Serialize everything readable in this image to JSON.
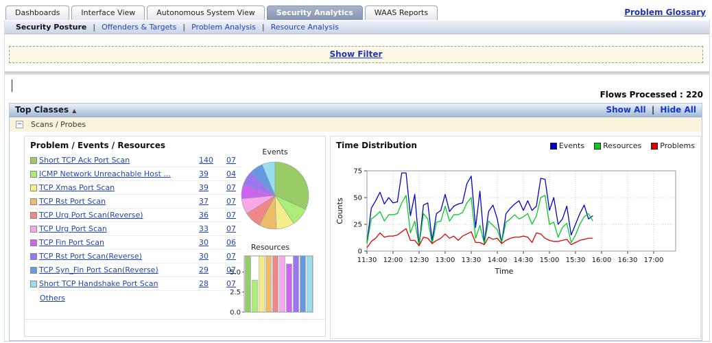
{
  "header": {
    "tabs": [
      {
        "label": "Dashboards"
      },
      {
        "label": "Interface View"
      },
      {
        "label": "Autonomous System View"
      },
      {
        "label": "Security Analytics"
      },
      {
        "label": "WAAS Reports"
      }
    ],
    "active_tab": "Security Analytics",
    "glossary_link": "Problem Glossary"
  },
  "subnav": {
    "items": [
      {
        "label": "Security Posture"
      },
      {
        "label": "Offenders & Targets"
      },
      {
        "label": "Problem Analysis"
      },
      {
        "label": "Resource Analysis"
      }
    ],
    "active": "Security Posture",
    "separator": "|"
  },
  "filter_bar": {
    "label": "Show Filter"
  },
  "status_bar": {
    "flows_processed": "Flows Processed : 220"
  },
  "top_classes": {
    "title": "Top Classes",
    "sort_indicator": "▲",
    "show_all": "Show All",
    "hide_all": "Hide All",
    "separator": "|",
    "class_name": "Scans / Probes",
    "collapse_glyph": "−"
  },
  "problems_panel": {
    "title": "Problem / Events / Resources",
    "others": "Others",
    "rows": [
      {
        "label": "Short TCP Ack Port Scan",
        "events": "140",
        "resources": "07",
        "color": "#99CC66"
      },
      {
        "label": "ICMP Network Unreachable Host ...",
        "events": "39",
        "resources": "04",
        "color": "#AAEE77"
      },
      {
        "label": "TCP Xmas Port Scan",
        "events": "39",
        "resources": "07",
        "color": "#F5EE88"
      },
      {
        "label": "TCP Rst Port Scan",
        "events": "37",
        "resources": "07",
        "color": "#EEBB66"
      },
      {
        "label": "TCP Urg Port Scan(Reverse)",
        "events": "36",
        "resources": "07",
        "color": "#F08888"
      },
      {
        "label": "TCP Urg Port Scan",
        "events": "33",
        "resources": "07",
        "color": "#F8A8E8"
      },
      {
        "label": "TCP Fin Port Scan",
        "events": "30",
        "resources": "06",
        "color": "#CC66EE"
      },
      {
        "label": "TCP Rst Port Scan(Reverse)",
        "events": "30",
        "resources": "07",
        "color": "#9977EE"
      },
      {
        "label": "TCP Syn_Fin Port Scan(Reverse)",
        "events": "29",
        "resources": "07",
        "color": "#6699DD"
      },
      {
        "label": "Short TCP Handshake Port Scan",
        "events": "28",
        "resources": "07",
        "color": "#99DDEE"
      }
    ]
  },
  "time_panel": {
    "title": "Time Distribution",
    "legend": [
      {
        "name": "Events",
        "color": "#0000CC"
      },
      {
        "name": "Resources",
        "color": "#00CC22"
      },
      {
        "name": "Problems",
        "color": "#DD0000"
      }
    ]
  },
  "chart_data": [
    {
      "type": "pie",
      "title": "Events",
      "labels": [
        "Short TCP Ack Port Scan",
        "ICMP Network Unreachable Host ...",
        "TCP Xmas Port Scan",
        "TCP Rst Port Scan",
        "TCP Urg Port Scan(Reverse)",
        "TCP Urg Port Scan",
        "TCP Fin Port Scan",
        "TCP Rst Port Scan(Reverse)",
        "TCP Syn_Fin Port Scan(Reverse)",
        "Short TCP Handshake Port Scan"
      ],
      "values": [
        140,
        39,
        39,
        37,
        36,
        33,
        30,
        30,
        29,
        28
      ],
      "colors": [
        "#99CC66",
        "#AAEE77",
        "#F5EE88",
        "#EEBB66",
        "#F08888",
        "#F8A8E8",
        "#CC66EE",
        "#9977EE",
        "#6699DD",
        "#99DDEE"
      ]
    },
    {
      "type": "bar",
      "title": "Resources",
      "categories": [
        "Short TCP Ack Port Scan",
        "ICMP Network Unreachable Host ...",
        "TCP Xmas Port Scan",
        "TCP Rst Port Scan",
        "TCP Urg Port Scan(Reverse)",
        "TCP Urg Port Scan",
        "TCP Fin Port Scan",
        "TCP Rst Port Scan(Reverse)",
        "TCP Syn_Fin Port Scan(Reverse)",
        "Short TCP Handshake Port Scan"
      ],
      "values": [
        7,
        4,
        7,
        7,
        7,
        7,
        6,
        7,
        7,
        7
      ],
      "ylim": [
        0,
        7
      ],
      "yticks": [
        "0.0",
        "2.5",
        "5.0"
      ],
      "colors": [
        "#99CC66",
        "#AAEE77",
        "#F5EE88",
        "#EEBB66",
        "#F08888",
        "#F8A8E8",
        "#CC66EE",
        "#9977EE",
        "#6699DD",
        "#99DDEE"
      ]
    },
    {
      "type": "line",
      "title": "Time Distribution",
      "xlabel": "Time",
      "ylabel": "Counts",
      "ylim": [
        0,
        75
      ],
      "yticks": [
        0,
        25,
        50,
        75
      ],
      "xticks": [
        "11:30",
        "12:00",
        "12:30",
        "13:00",
        "13:30",
        "14:00",
        "14:30",
        "15:00",
        "15:30",
        "16:00",
        "16:30",
        "17:00"
      ],
      "x_interval_minutes": 5,
      "grid": true,
      "legend_position": "top-right",
      "series": [
        {
          "name": "Events",
          "color": "#0000CC",
          "values": [
            8,
            40,
            47,
            55,
            44,
            50,
            45,
            46,
            73,
            73,
            33,
            53,
            5,
            43,
            45,
            10,
            35,
            38,
            53,
            37,
            42,
            44,
            45,
            63,
            70,
            22,
            56,
            8,
            37,
            43,
            30,
            8,
            35,
            40,
            44,
            47,
            38,
            47,
            38,
            42,
            68,
            67,
            38,
            50,
            25,
            30,
            42,
            15,
            25,
            35,
            43,
            30,
            33
          ]
        },
        {
          "name": "Resources",
          "color": "#00CC22",
          "values": [
            7,
            30,
            33,
            37,
            28,
            34,
            34,
            35,
            45,
            52,
            17,
            28,
            5,
            35,
            30,
            7,
            27,
            28,
            42,
            28,
            34,
            34,
            36,
            45,
            50,
            12,
            24,
            7,
            28,
            24,
            20,
            8,
            27,
            30,
            34,
            30,
            32,
            35,
            25,
            33,
            50,
            52,
            25,
            27,
            13,
            22,
            26,
            8,
            15,
            25,
            32,
            35,
            28
          ]
        },
        {
          "name": "Problems",
          "color": "#DD0000",
          "values": [
            3,
            9,
            12,
            17,
            13,
            14,
            14,
            15,
            18,
            21,
            10,
            10,
            5,
            13,
            12,
            7,
            10,
            12,
            16,
            12,
            14,
            10,
            14,
            16,
            18,
            8,
            8,
            6,
            13,
            11,
            12,
            7,
            10,
            12,
            13,
            13,
            14,
            13,
            8,
            17,
            16,
            12,
            10,
            9,
            9,
            10,
            11,
            6,
            8,
            10,
            11,
            12,
            12
          ]
        }
      ]
    }
  ]
}
